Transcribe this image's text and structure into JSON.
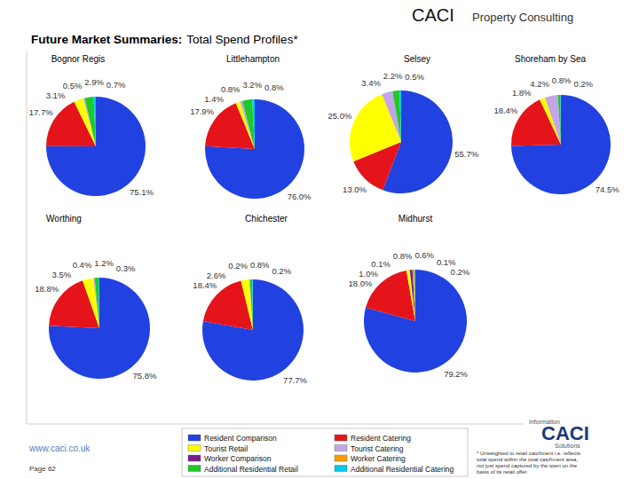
{
  "header": {
    "title": "Future Market Summaries:",
    "subtitle": "Total Spend Profiles*",
    "brand": "CACI",
    "division": "Property Consulting"
  },
  "chart_data": [
    {
      "type": "pie",
      "title": "Bognor Regis",
      "categories": [
        "Resident Comparison",
        "Resident Catering",
        "Tourist Retail",
        "Tourist Catering",
        "Additional Residential Retail",
        "Additional Residential Catering"
      ],
      "values": [
        75.1,
        17.7,
        3.1,
        0.5,
        2.9,
        0.7
      ],
      "value_labels": [
        "75.1%",
        "17.7%",
        "3.1%",
        "0.5%",
        "2.9%",
        "0.7%"
      ],
      "data_labels": true
    },
    {
      "type": "pie",
      "title": "Littlehampton",
      "categories": [
        "Resident Comparison",
        "Resident Catering",
        "Tourist Retail",
        "Tourist Catering",
        "Additional Residential Retail",
        "Additional Residential Catering"
      ],
      "values": [
        76.0,
        17.9,
        1.4,
        0.8,
        3.2,
        0.8
      ],
      "value_labels": [
        "76.0%",
        "17.9%",
        "1.4%",
        "0.8%",
        "3.2%",
        "0.8%"
      ],
      "data_labels": true
    },
    {
      "type": "pie",
      "title": "Selsey",
      "categories": [
        "Resident Comparison",
        "Resident Catering",
        "Tourist Retail",
        "Tourist Catering",
        "Additional Residential Retail",
        "Additional Residential Catering"
      ],
      "values": [
        55.7,
        13.0,
        25.0,
        3.4,
        2.2,
        0.5
      ],
      "value_labels": [
        "55.7%",
        "13.0%",
        "25.0%",
        "3.4%",
        "2.2%",
        "0.5%"
      ],
      "data_labels": true
    },
    {
      "type": "pie",
      "title": "Shoreham by Sea",
      "categories": [
        "Resident Comparison",
        "Resident Catering",
        "Tourist Retail",
        "Tourist Catering",
        "Additional Residential Retail",
        "Additional Residential Catering"
      ],
      "values": [
        74.5,
        18.4,
        1.8,
        4.2,
        0.8,
        0.2
      ],
      "value_labels": [
        "74.5%",
        "18.4%",
        "1.8%",
        "4.2%",
        "0.8%",
        "0.2%"
      ],
      "data_labels": true
    },
    {
      "type": "pie",
      "title": "Worthing",
      "categories": [
        "Resident Comparison",
        "Resident Catering",
        "Tourist Retail",
        "Tourist Catering",
        "Additional Residential Retail",
        "Additional Residential Catering"
      ],
      "values": [
        75.8,
        18.8,
        3.5,
        0.4,
        1.2,
        0.3
      ],
      "value_labels": [
        "75.8%",
        "18.8%",
        "3.5%",
        "0.4%",
        "1.2%",
        "0.3%"
      ],
      "data_labels": true
    },
    {
      "type": "pie",
      "title": "Chichester",
      "categories": [
        "Resident Comparison",
        "Resident Catering",
        "Tourist Retail",
        "Tourist Catering",
        "Additional Residential Retail",
        "Additional Residential Catering"
      ],
      "values": [
        77.7,
        18.4,
        2.6,
        0.2,
        0.8,
        0.2
      ],
      "value_labels": [
        "77.7%",
        "18.4%",
        "2.6%",
        "0.2%",
        "0.8%",
        "0.2%"
      ],
      "data_labels": true
    },
    {
      "type": "pie",
      "title": "Midhurst",
      "categories": [
        "Resident Comparison",
        "Resident Catering",
        "Tourist Retail",
        "Tourist Catering",
        "Worker Comparison",
        "Worker Catering",
        "Additional Residential Retail",
        "Additional Residential Catering"
      ],
      "values": [
        79.2,
        18.0,
        1.0,
        0.1,
        0.8,
        0.6,
        0.1,
        0.2
      ],
      "value_labels": [
        "79.2%",
        "18.0%",
        "1.0%",
        "0.1%",
        "0.8%",
        "0.6%",
        "0.1%",
        "0.2%"
      ],
      "data_labels": true
    }
  ],
  "legend": {
    "entries": [
      {
        "name": "Resident Comparison",
        "color": "#2142e0"
      },
      {
        "name": "Resident Catering",
        "color": "#e5141b"
      },
      {
        "name": "Tourist Retail",
        "color": "#ffff00"
      },
      {
        "name": "Tourist Catering",
        "color": "#c4a6e6"
      },
      {
        "name": "Worker Comparison",
        "color": "#7a1a8c"
      },
      {
        "name": "Worker Catering",
        "color": "#ff9a00"
      },
      {
        "name": "Additional Residential Retail",
        "color": "#20c828"
      },
      {
        "name": "Additional Residential Catering",
        "color": "#00c8ea"
      }
    ]
  },
  "footer": {
    "url": "www.caci.co.uk",
    "page": "Page 62",
    "note": [
      "* Unweighted to retail catchment i.e. reflects",
      "total spend within the total catchment area,",
      "not just spend captured by the town on the",
      "basis of its retail offer."
    ]
  },
  "logo": {
    "top": "Information",
    "name": "CACI",
    "bottom": "Solutions"
  }
}
